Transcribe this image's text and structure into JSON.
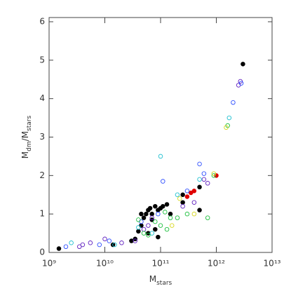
{
  "chart_data": {
    "type": "scatter",
    "xlabel": [
      {
        "text": "M"
      },
      {
        "text": "stars",
        "sub": true
      }
    ],
    "ylabel": [
      {
        "text": "M"
      },
      {
        "text": "dm",
        "sub": true
      },
      {
        "text": "/M"
      },
      {
        "text": "stars",
        "sub": true
      }
    ],
    "xscale": "log",
    "xlim": [
      1000000000.0,
      10000000000000.0
    ],
    "xticks": [
      {
        "value": 1000000000.0,
        "label": "10⁹"
      },
      {
        "value": 10000000000.0,
        "label": "10¹⁰"
      },
      {
        "value": 100000000000.0,
        "label": "10¹¹"
      },
      {
        "value": 1000000000000.0,
        "label": "10¹²"
      },
      {
        "value": 10000000000000.0,
        "label": "10¹³"
      }
    ],
    "ylim": [
      0,
      6
    ],
    "yticks": [
      0,
      1,
      2,
      3,
      4,
      5,
      6
    ],
    "series": [
      {
        "color": "#000000",
        "filled": true,
        "x": [
          1500000000.0,
          14000000000.0,
          30000000000.0,
          35000000000.0,
          40000000000.0,
          45000000000.0,
          50000000000.0,
          55000000000.0,
          60000000000.0,
          65000000000.0,
          70000000000.0,
          80000000000.0,
          90000000000.0,
          100000000000.0,
          110000000000.0,
          130000000000.0,
          70000000000.0,
          80000000000.0,
          90000000000.0,
          500000000000.0,
          500000000000.0,
          250000000000.0,
          3000000000000.0,
          60000000000.0,
          45000000000.0,
          150000000000.0,
          250000000000.0
        ],
        "values": [
          0.1,
          0.2,
          0.3,
          0.35,
          0.55,
          0.7,
          0.9,
          1.0,
          1.1,
          1.15,
          1.0,
          1.2,
          1.1,
          1.15,
          1.2,
          1.25,
          0.85,
          0.6,
          0.4,
          1.7,
          1.1,
          1.3,
          4.9,
          0.5,
          1.0,
          1.0,
          1.5
        ]
      },
      {
        "color": "#e00000",
        "filled": true,
        "x": [
          350000000000.0,
          400000000000.0,
          1000000000000.0,
          300000000000.0
        ],
        "values": [
          1.55,
          1.6,
          2.0,
          1.45
        ]
      },
      {
        "color": "#6020c0",
        "filled": false,
        "x": [
          3500000000.0,
          4000000000.0,
          5500000000.0,
          10000000000.0,
          20000000000.0,
          35000000000.0,
          50000000000.0,
          60000000000.0,
          70000000000.0,
          2500000000000.0,
          2700000000000.0,
          600000000000.0,
          700000000000.0,
          250000000000.0,
          400000000000.0
        ],
        "values": [
          0.15,
          0.2,
          0.25,
          0.35,
          0.25,
          0.3,
          0.6,
          0.7,
          0.9,
          4.35,
          4.45,
          1.9,
          1.8,
          1.2,
          1.3
        ]
      },
      {
        "color": "#3050ff",
        "filled": false,
        "x": [
          2000000000.0,
          8000000000.0,
          12000000000.0,
          500000000000.0,
          600000000000.0,
          110000000000.0,
          2000000000000.0,
          300000000000.0,
          2800000000000.0,
          45000000000.0,
          90000000000.0
        ],
        "values": [
          0.15,
          0.2,
          0.3,
          2.3,
          2.05,
          1.85,
          3.9,
          1.6,
          4.4,
          0.8,
          1.0
        ]
      },
      {
        "color": "#20c0d0",
        "filled": false,
        "x": [
          2500000000.0,
          15000000000.0,
          100000000000.0,
          1700000000000.0,
          500000000000.0,
          70000000000.0,
          40000000000.0,
          200000000000.0
        ],
        "values": [
          0.25,
          0.2,
          2.5,
          3.5,
          1.9,
          0.5,
          0.65,
          1.5
        ]
      },
      {
        "color": "#20c040",
        "filled": false,
        "x": [
          1600000000000.0,
          80000000000.0,
          100000000000.0,
          130000000000.0,
          150000000000.0,
          50000000000.0,
          60000000000.0,
          200000000000.0,
          300000000000.0,
          700000000000.0,
          900000000000.0,
          40000000000.0,
          120000000000.0
        ],
        "values": [
          3.3,
          0.8,
          0.7,
          0.6,
          0.9,
          0.5,
          0.45,
          0.9,
          1.0,
          0.9,
          2.0,
          0.85,
          1.05
        ]
      },
      {
        "color": "#d8d820",
        "filled": false,
        "x": [
          1500000000000.0,
          400000000000.0,
          220000000000.0,
          160000000000.0,
          900000000000.0
        ],
        "values": [
          3.25,
          1.0,
          1.4,
          0.7,
          2.05
        ]
      }
    ]
  }
}
